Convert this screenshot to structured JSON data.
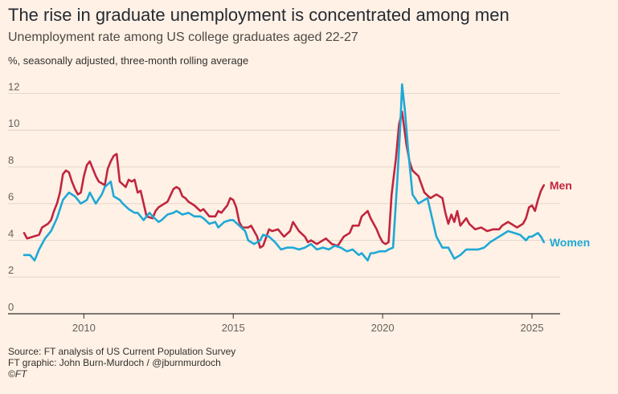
{
  "header": {
    "title": "The rise in graduate unemployment is concentrated among men",
    "subtitle": "Unemployment rate among US college graduates aged 22-27",
    "units": "%, seasonally adjusted, three-month rolling average"
  },
  "footer": {
    "source": "Source: FT analysis of US Current Population Survey",
    "graphic": "FT graphic: John Burn-Murdoch / @jburnmurdoch",
    "copyright": "©FT"
  },
  "colors": {
    "men": "#c1253f",
    "women": "#1fa8d6",
    "grid": "#e3d6cb",
    "axis": "#33302e"
  },
  "chart_data": {
    "type": "line",
    "title": "The rise in graduate unemployment is concentrated among men",
    "subtitle": "Unemployment rate among US college graduates aged 22-27",
    "ylabel": "%, seasonally adjusted, three-month rolling average",
    "xlim": [
      2008,
      2025.7
    ],
    "ylim": [
      0,
      12.5
    ],
    "yticks": [
      0,
      2,
      4,
      6,
      8,
      10,
      12
    ],
    "xticks": [
      2010,
      2015,
      2020,
      2025
    ],
    "grid": true,
    "series": [
      {
        "name": "Men",
        "x": [
          2008.0,
          2008.1,
          2008.3,
          2008.5,
          2008.6,
          2008.8,
          2008.9,
          2009.0,
          2009.1,
          2009.2,
          2009.3,
          2009.4,
          2009.5,
          2009.6,
          2009.7,
          2009.8,
          2009.9,
          2010.0,
          2010.1,
          2010.2,
          2010.4,
          2010.5,
          2010.7,
          2010.8,
          2010.9,
          2011.0,
          2011.1,
          2011.2,
          2011.4,
          2011.5,
          2011.6,
          2011.7,
          2011.8,
          2011.9,
          2012.0,
          2012.1,
          2012.3,
          2012.4,
          2012.5,
          2012.6,
          2012.8,
          2013.0,
          2013.1,
          2013.2,
          2013.3,
          2013.4,
          2013.5,
          2013.7,
          2013.9,
          2014.0,
          2014.2,
          2014.4,
          2014.5,
          2014.6,
          2014.8,
          2014.9,
          2015.0,
          2015.1,
          2015.2,
          2015.3,
          2015.5,
          2015.6,
          2015.8,
          2015.9,
          2016.0,
          2016.2,
          2016.3,
          2016.5,
          2016.7,
          2016.9,
          2017.0,
          2017.2,
          2017.4,
          2017.5,
          2017.6,
          2017.8,
          2017.9,
          2018.1,
          2018.3,
          2018.5,
          2018.7,
          2018.9,
          2019.0,
          2019.2,
          2019.3,
          2019.5,
          2019.6,
          2019.8,
          2019.9,
          2020.0,
          2020.1,
          2020.2,
          2020.3,
          2020.45,
          2020.55,
          2020.65,
          2020.8,
          2020.9,
          2021.0,
          2021.2,
          2021.4,
          2021.6,
          2021.8,
          2022.0,
          2022.1,
          2022.2,
          2022.3,
          2022.4,
          2022.5,
          2022.6,
          2022.7,
          2022.8,
          2022.9,
          2023.1,
          2023.3,
          2023.5,
          2023.7,
          2023.9,
          2024.0,
          2024.1,
          2024.2,
          2024.3,
          2024.5,
          2024.7,
          2024.8,
          2024.9,
          2025.0,
          2025.1,
          2025.2,
          2025.3,
          2025.4
        ],
        "values": [
          4.4,
          4.1,
          4.2,
          4.3,
          4.7,
          4.9,
          5.1,
          5.6,
          6.0,
          6.6,
          7.6,
          7.8,
          7.7,
          7.2,
          6.8,
          6.5,
          6.6,
          7.5,
          8.1,
          8.3,
          7.5,
          7.2,
          7.0,
          7.9,
          8.3,
          8.6,
          8.7,
          7.2,
          6.9,
          7.3,
          7.2,
          7.3,
          6.6,
          6.7,
          6.0,
          5.3,
          5.2,
          5.6,
          5.8,
          5.9,
          6.1,
          6.8,
          6.9,
          6.8,
          6.4,
          6.3,
          6.1,
          5.9,
          5.6,
          5.7,
          5.3,
          5.3,
          5.6,
          5.5,
          5.9,
          6.3,
          6.2,
          5.8,
          5.0,
          4.7,
          4.7,
          4.8,
          4.2,
          3.6,
          3.7,
          4.6,
          4.5,
          4.6,
          4.2,
          4.5,
          5.0,
          4.5,
          4.2,
          3.9,
          4.0,
          3.8,
          3.9,
          4.1,
          3.8,
          3.7,
          4.2,
          4.4,
          4.8,
          4.8,
          5.3,
          5.6,
          5.2,
          4.6,
          4.2,
          3.9,
          3.8,
          3.9,
          6.5,
          8.5,
          10.3,
          11.0,
          9.2,
          8.3,
          7.8,
          7.5,
          6.6,
          6.3,
          6.5,
          6.3,
          5.5,
          4.9,
          5.4,
          5.0,
          5.6,
          4.8,
          5.0,
          5.2,
          4.9,
          4.6,
          4.7,
          4.5,
          4.6,
          4.6,
          4.8,
          4.9,
          5.0,
          4.9,
          4.7,
          4.9,
          5.2,
          5.8,
          5.9,
          5.6,
          6.2,
          6.7,
          7.0
        ]
      },
      {
        "name": "Women",
        "x": [
          2008.0,
          2008.2,
          2008.35,
          2008.5,
          2008.7,
          2008.9,
          2009.1,
          2009.3,
          2009.5,
          2009.7,
          2009.9,
          2010.1,
          2010.2,
          2010.4,
          2010.6,
          2010.7,
          2010.9,
          2011.0,
          2011.2,
          2011.3,
          2011.5,
          2011.7,
          2011.8,
          2012.0,
          2012.1,
          2012.2,
          2012.3,
          2012.5,
          2012.6,
          2012.8,
          2013.0,
          2013.1,
          2013.3,
          2013.5,
          2013.7,
          2013.9,
          2014.0,
          2014.2,
          2014.4,
          2014.5,
          2014.7,
          2014.9,
          2015.0,
          2015.2,
          2015.4,
          2015.5,
          2015.7,
          2015.9,
          2016.0,
          2016.2,
          2016.4,
          2016.6,
          2016.8,
          2017.0,
          2017.2,
          2017.4,
          2017.6,
          2017.8,
          2018.0,
          2018.2,
          2018.4,
          2018.6,
          2018.8,
          2019.0,
          2019.2,
          2019.3,
          2019.5,
          2019.6,
          2019.7,
          2019.9,
          2020.1,
          2020.2,
          2020.35,
          2020.5,
          2020.6,
          2020.65,
          2020.75,
          2020.85,
          2021.0,
          2021.2,
          2021.4,
          2021.5,
          2021.6,
          2021.8,
          2022.0,
          2022.2,
          2022.4,
          2022.6,
          2022.8,
          2023.0,
          2023.2,
          2023.4,
          2023.6,
          2023.8,
          2024.0,
          2024.2,
          2024.4,
          2024.6,
          2024.8,
          2024.9,
          2025.0,
          2025.2,
          2025.3,
          2025.4
        ],
        "values": [
          3.2,
          3.2,
          2.9,
          3.5,
          4.1,
          4.5,
          5.2,
          6.2,
          6.6,
          6.4,
          6.0,
          6.2,
          6.6,
          6.0,
          6.5,
          6.9,
          7.2,
          6.4,
          6.2,
          6.0,
          5.7,
          5.5,
          5.5,
          5.1,
          5.3,
          5.5,
          5.3,
          5.0,
          5.1,
          5.4,
          5.5,
          5.6,
          5.4,
          5.5,
          5.3,
          5.3,
          5.2,
          4.9,
          5.0,
          4.7,
          5.0,
          5.1,
          5.1,
          4.8,
          4.5,
          4.0,
          3.8,
          4.0,
          4.3,
          4.2,
          3.9,
          3.5,
          3.6,
          3.6,
          3.5,
          3.6,
          3.8,
          3.5,
          3.6,
          3.5,
          3.7,
          3.6,
          3.4,
          3.5,
          3.2,
          3.3,
          2.9,
          3.3,
          3.3,
          3.4,
          3.4,
          3.5,
          3.6,
          7.5,
          10.5,
          12.5,
          11.0,
          9.0,
          6.5,
          6.0,
          6.2,
          6.3,
          5.6,
          4.2,
          3.6,
          3.6,
          3.0,
          3.2,
          3.5,
          3.5,
          3.5,
          3.6,
          3.9,
          4.1,
          4.3,
          4.5,
          4.4,
          4.3,
          4.0,
          4.2,
          4.2,
          4.4,
          4.2,
          3.9
        ]
      }
    ]
  }
}
